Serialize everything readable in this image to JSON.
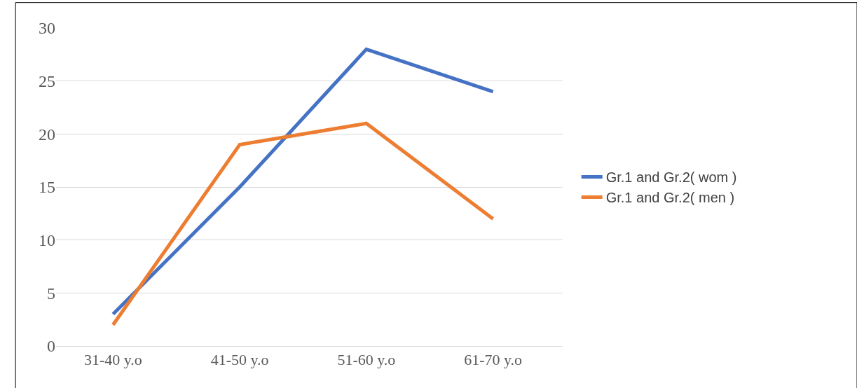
{
  "chart_data": {
    "type": "line",
    "categories": [
      "31-40 y.o",
      "41-50 y.o",
      "51-60 y.o",
      "61-70 y.o"
    ],
    "series": [
      {
        "name": "Gr.1 and Gr.2( wom )",
        "color": "#4472c4",
        "values": [
          3,
          15,
          28,
          24
        ]
      },
      {
        "name": "Gr.1 and Gr.2( men )",
        "color": "#ed7d31",
        "values": [
          2,
          19,
          21,
          12
        ]
      }
    ],
    "ylim": [
      0,
      30
    ],
    "yticks": [
      0,
      5,
      10,
      15,
      20,
      25,
      30
    ],
    "grid": "y",
    "legend": "right",
    "marker": "none",
    "line_style": "solid"
  }
}
